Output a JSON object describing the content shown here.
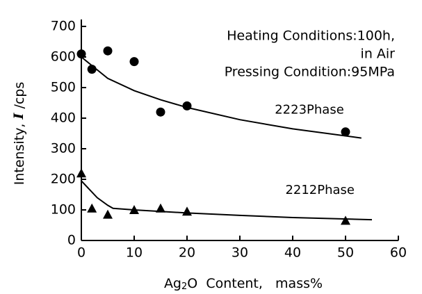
{
  "chart_data": {
    "type": "scatter",
    "ylabel": {
      "main": "Intensity,",
      "italic": "I",
      "unit": "/cps"
    },
    "xlabel": {
      "main": "Ag",
      "sub": "2",
      "rest": "O  Content,   mass%"
    },
    "annotations": [
      "Heating Conditions:100h,",
      "in Air",
      "Pressing Condition:95MPa"
    ],
    "xlim": [
      0,
      60
    ],
    "xticks": [
      0,
      10,
      20,
      30,
      40,
      50,
      60
    ],
    "ylim": [
      0,
      700
    ],
    "yticks": [
      0,
      100,
      200,
      300,
      400,
      500,
      600,
      700
    ],
    "series": [
      {
        "name": "2223Phase",
        "marker": "circle",
        "color": "#000000",
        "x": [
          0,
          2,
          5,
          10,
          15,
          20,
          50
        ],
        "values": [
          610,
          560,
          620,
          585,
          420,
          440,
          355
        ],
        "fit": {
          "x": [
            0,
            5,
            10,
            15,
            20,
            30,
            40,
            53
          ],
          "values": [
            600,
            530,
            490,
            460,
            435,
            395,
            365,
            335
          ]
        }
      },
      {
        "name": "2212Phase",
        "marker": "triangle",
        "color": "#000000",
        "x": [
          0,
          2,
          5,
          10,
          15,
          20,
          50
        ],
        "values": [
          220,
          105,
          85,
          100,
          105,
          95,
          65
        ],
        "fit": {
          "x": [
            0,
            3,
            5,
            6,
            10,
            20,
            30,
            40,
            55
          ],
          "values": [
            195,
            140,
            115,
            105,
            100,
            90,
            82,
            75,
            68
          ]
        }
      }
    ]
  }
}
